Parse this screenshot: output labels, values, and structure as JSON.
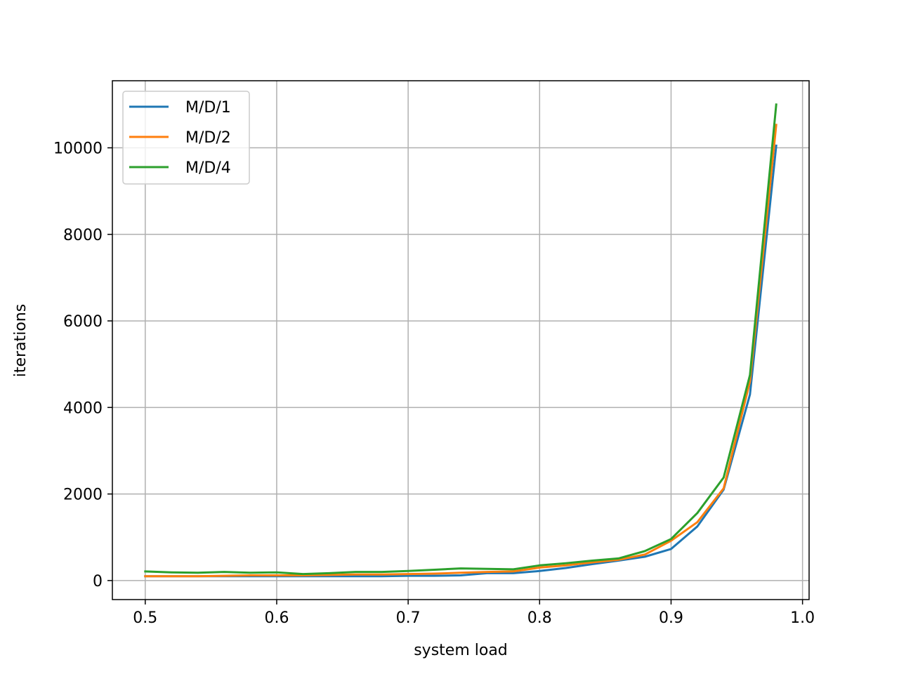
{
  "chart_data": {
    "type": "line",
    "title": "",
    "xlabel": "system load",
    "ylabel": "iterations",
    "xlim": [
      0.475,
      1.005
    ],
    "ylim": [
      -440,
      11550
    ],
    "xticks": [
      0.5,
      0.6,
      0.7,
      0.8,
      0.9,
      1.0
    ],
    "xtick_labels": [
      "0.5",
      "0.6",
      "0.7",
      "0.8",
      "0.9",
      "1.0"
    ],
    "yticks": [
      0,
      2000,
      4000,
      6000,
      8000,
      10000
    ],
    "ytick_labels": [
      "0",
      "2000",
      "4000",
      "6000",
      "8000",
      "10000"
    ],
    "grid": true,
    "legend": "upper-left",
    "x": [
      0.5,
      0.52,
      0.54,
      0.56,
      0.58,
      0.6,
      0.62,
      0.64,
      0.66,
      0.68,
      0.7,
      0.72,
      0.74,
      0.76,
      0.78,
      0.8,
      0.82,
      0.84,
      0.86,
      0.88,
      0.9,
      0.92,
      0.94,
      0.96,
      0.98
    ],
    "series": [
      {
        "name": "M/D/1",
        "color": "#1f77b4",
        "values": [
          100,
          100,
          100,
          100,
          100,
          100,
          100,
          100,
          100,
          100,
          110,
          110,
          120,
          170,
          170,
          220,
          290,
          380,
          460,
          550,
          730,
          1250,
          2100,
          4300,
          10050
        ]
      },
      {
        "name": "M/D/2",
        "color": "#ff7f0e",
        "values": [
          100,
          100,
          100,
          110,
          120,
          120,
          120,
          130,
          140,
          140,
          150,
          160,
          180,
          200,
          210,
          300,
          350,
          420,
          480,
          600,
          920,
          1350,
          2130,
          4600,
          10530
        ]
      },
      {
        "name": "M/D/4",
        "color": "#2ca02c",
        "values": [
          210,
          190,
          180,
          200,
          180,
          190,
          150,
          170,
          200,
          200,
          220,
          250,
          280,
          270,
          260,
          350,
          400,
          460,
          510,
          680,
          960,
          1560,
          2380,
          4750,
          11000
        ]
      }
    ]
  }
}
